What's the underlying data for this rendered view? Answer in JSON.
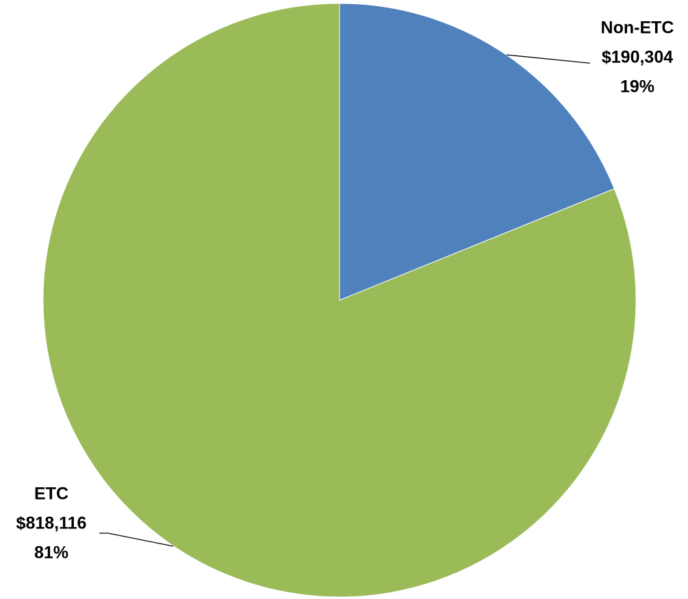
{
  "chart_data": {
    "type": "pie",
    "categories": [
      "Non-ETC",
      "ETC"
    ],
    "values": [
      190304,
      818116
    ],
    "value_labels": [
      "$190,304",
      "$818,116"
    ],
    "percents": [
      19,
      81
    ],
    "percent_labels": [
      "19%",
      "81%"
    ],
    "colors": [
      "#4f81bd",
      "#9bbb59"
    ]
  }
}
